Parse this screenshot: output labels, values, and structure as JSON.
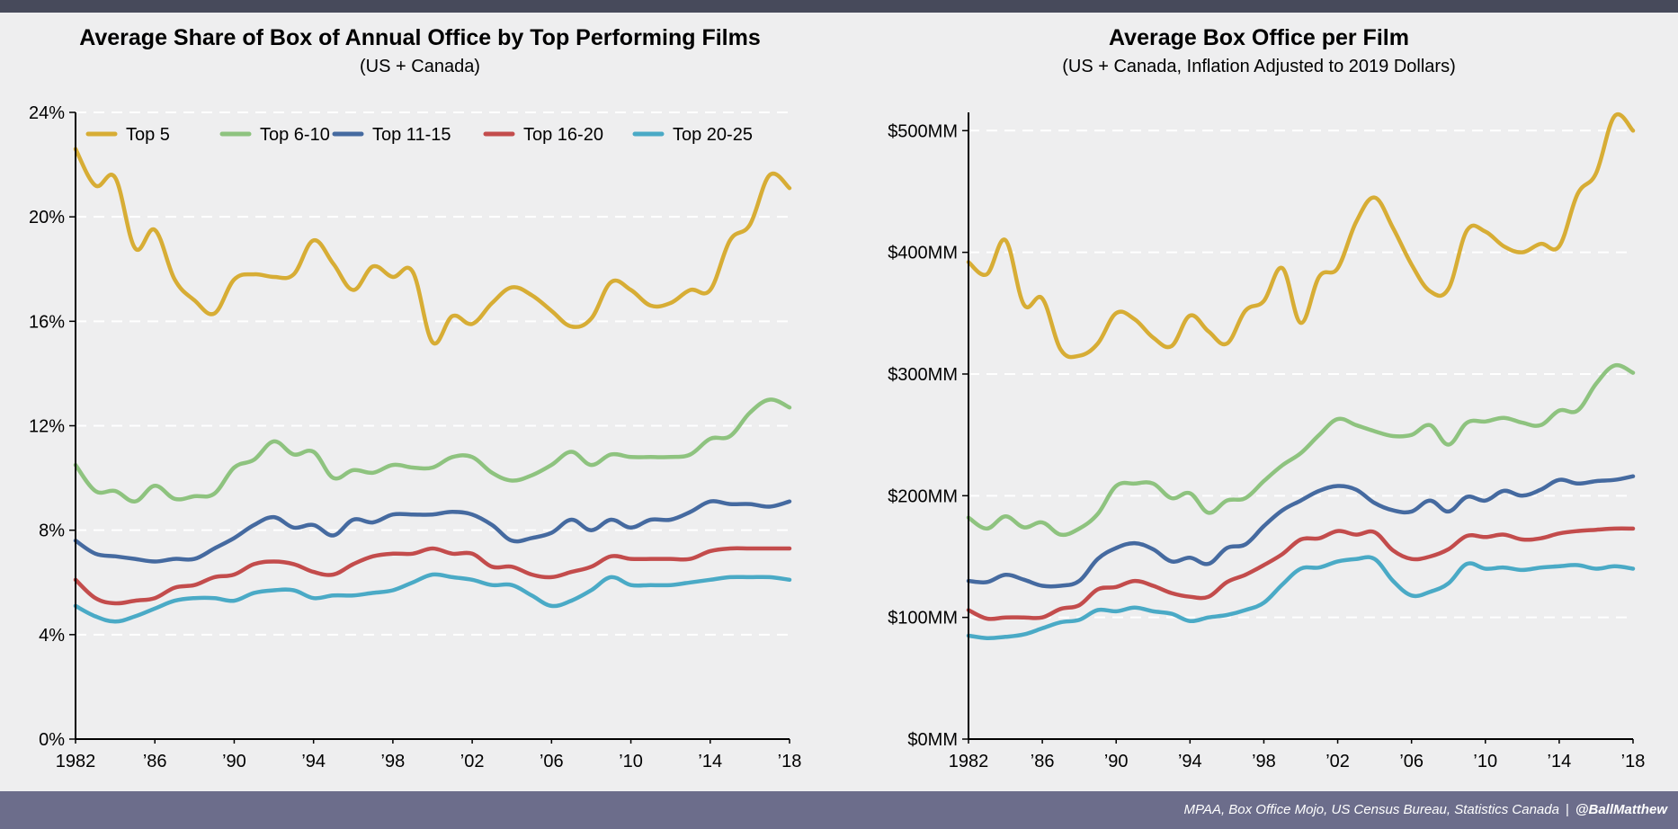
{
  "chart_data": [
    {
      "type": "line",
      "title": "Average Share of Box of Annual Office by Top Performing Films",
      "subtitle": "(US + Canada)",
      "xlabel": "",
      "ylabel": "",
      "x": [
        1982,
        1983,
        1984,
        1985,
        1986,
        1987,
        1988,
        1989,
        1990,
        1991,
        1992,
        1993,
        1994,
        1995,
        1996,
        1997,
        1998,
        1999,
        2000,
        2001,
        2002,
        2003,
        2004,
        2005,
        2006,
        2007,
        2008,
        2009,
        2010,
        2011,
        2012,
        2013,
        2014,
        2015,
        2016,
        2017,
        2018
      ],
      "xlim": [
        1982,
        2018
      ],
      "x_ticks": [
        1982,
        1986,
        1990,
        1994,
        1998,
        2002,
        2006,
        2010,
        2014,
        2018
      ],
      "x_tick_labels": [
        "1982",
        "’86",
        "’90",
        "’94",
        "’98",
        "’02",
        "’06",
        "’10",
        "’14",
        "’18"
      ],
      "ylim": [
        0,
        24
      ],
      "y_ticks": [
        0,
        4,
        8,
        12,
        16,
        20,
        24
      ],
      "y_tick_labels": [
        "0%",
        "4%",
        "8%",
        "12%",
        "16%",
        "20%",
        "24%"
      ],
      "grid": "horizontal-dashed",
      "legend": "top",
      "series": [
        {
          "name": "Top 5",
          "color": "#d7ad35",
          "values": [
            22.6,
            21.2,
            21.5,
            18.8,
            19.5,
            17.6,
            16.8,
            16.3,
            17.6,
            17.8,
            17.7,
            17.8,
            19.1,
            18.2,
            17.2,
            18.1,
            17.7,
            17.9,
            15.2,
            16.2,
            15.9,
            16.7,
            17.3,
            17.0,
            16.4,
            15.8,
            16.1,
            17.5,
            17.2,
            16.6,
            16.7,
            17.2,
            17.2,
            19.1,
            19.7,
            21.6,
            21.1
          ]
        },
        {
          "name": "Top 6-10",
          "color": "#8ec37f",
          "values": [
            10.5,
            9.5,
            9.5,
            9.1,
            9.7,
            9.2,
            9.3,
            9.4,
            10.4,
            10.7,
            11.4,
            10.9,
            11.0,
            10.0,
            10.3,
            10.2,
            10.5,
            10.4,
            10.4,
            10.8,
            10.8,
            10.2,
            9.9,
            10.1,
            10.5,
            11.0,
            10.5,
            10.9,
            10.8,
            10.8,
            10.8,
            10.9,
            11.5,
            11.6,
            12.5,
            13.0,
            12.7
          ]
        },
        {
          "name": "Top 11-15",
          "color": "#456aa0",
          "values": [
            7.6,
            7.1,
            7.0,
            6.9,
            6.8,
            6.9,
            6.9,
            7.3,
            7.7,
            8.2,
            8.5,
            8.1,
            8.2,
            7.8,
            8.4,
            8.3,
            8.6,
            8.6,
            8.6,
            8.7,
            8.6,
            8.2,
            7.6,
            7.7,
            7.9,
            8.4,
            8.0,
            8.4,
            8.1,
            8.4,
            8.4,
            8.7,
            9.1,
            9.0,
            9.0,
            8.9,
            9.1
          ]
        },
        {
          "name": "Top 16-20",
          "color": "#c34c4c",
          "values": [
            6.1,
            5.4,
            5.2,
            5.3,
            5.4,
            5.8,
            5.9,
            6.2,
            6.3,
            6.7,
            6.8,
            6.7,
            6.4,
            6.3,
            6.7,
            7.0,
            7.1,
            7.1,
            7.3,
            7.1,
            7.1,
            6.6,
            6.6,
            6.3,
            6.2,
            6.4,
            6.6,
            7.0,
            6.9,
            6.9,
            6.9,
            6.9,
            7.2,
            7.3,
            7.3,
            7.3,
            7.3
          ]
        },
        {
          "name": "Top 20-25",
          "color": "#4aaac6",
          "values": [
            5.1,
            4.7,
            4.5,
            4.7,
            5.0,
            5.3,
            5.4,
            5.4,
            5.3,
            5.6,
            5.7,
            5.7,
            5.4,
            5.5,
            5.5,
            5.6,
            5.7,
            6.0,
            6.3,
            6.2,
            6.1,
            5.9,
            5.9,
            5.5,
            5.1,
            5.3,
            5.7,
            6.2,
            5.9,
            5.9,
            5.9,
            6.0,
            6.1,
            6.2,
            6.2,
            6.2,
            6.1
          ]
        }
      ]
    },
    {
      "type": "line",
      "title": "Average Box Office per Film",
      "subtitle": "(US + Canada, Inflation Adjusted to 2019 Dollars)",
      "xlabel": "",
      "ylabel": "",
      "x": [
        1982,
        1983,
        1984,
        1985,
        1986,
        1987,
        1988,
        1989,
        1990,
        1991,
        1992,
        1993,
        1994,
        1995,
        1996,
        1997,
        1998,
        1999,
        2000,
        2001,
        2002,
        2003,
        2004,
        2005,
        2006,
        2007,
        2008,
        2009,
        2010,
        2011,
        2012,
        2013,
        2014,
        2015,
        2016,
        2017,
        2018
      ],
      "xlim": [
        1982,
        2018
      ],
      "x_ticks": [
        1982,
        1986,
        1990,
        1994,
        1998,
        2002,
        2006,
        2010,
        2014,
        2018
      ],
      "x_tick_labels": [
        "1982",
        "’86",
        "’90",
        "’94",
        "’98",
        "’02",
        "’06",
        "’10",
        "’14",
        "’18"
      ],
      "ylim": [
        0,
        515
      ],
      "y_ticks": [
        0,
        100,
        200,
        300,
        400,
        500
      ],
      "y_tick_labels": [
        "$0MM",
        "$100MM",
        "$200MM",
        "$300MM",
        "$400MM",
        "$500MM"
      ],
      "grid": "horizontal-dashed",
      "legend": "none",
      "series": [
        {
          "name": "Top 5",
          "color": "#d7ad35",
          "values": [
            392,
            382,
            410,
            357,
            362,
            320,
            315,
            325,
            350,
            345,
            330,
            323,
            348,
            335,
            325,
            352,
            360,
            387,
            342,
            380,
            387,
            425,
            445,
            420,
            390,
            368,
            370,
            418,
            417,
            405,
            400,
            407,
            405,
            448,
            465,
            512,
            500
          ]
        },
        {
          "name": "Top 6-10",
          "color": "#8ec37f",
          "values": [
            182,
            173,
            183,
            174,
            178,
            168,
            173,
            185,
            208,
            210,
            210,
            198,
            202,
            186,
            196,
            198,
            212,
            225,
            235,
            250,
            263,
            258,
            253,
            249,
            250,
            258,
            242,
            260,
            261,
            264,
            260,
            258,
            270,
            270,
            292,
            307,
            301
          ]
        },
        {
          "name": "Top 11-15",
          "color": "#456aa0",
          "values": [
            130,
            129,
            135,
            131,
            126,
            126,
            130,
            148,
            157,
            161,
            156,
            146,
            149,
            144,
            157,
            160,
            175,
            188,
            196,
            204,
            208,
            205,
            194,
            188,
            187,
            196,
            187,
            199,
            196,
            204,
            200,
            205,
            213,
            210,
            212,
            213,
            216
          ]
        },
        {
          "name": "Top 16-20",
          "color": "#c34c4c",
          "values": [
            106,
            99,
            100,
            100,
            100,
            107,
            110,
            123,
            125,
            130,
            126,
            120,
            117,
            117,
            129,
            135,
            143,
            152,
            164,
            165,
            171,
            168,
            170,
            155,
            148,
            150,
            156,
            167,
            166,
            168,
            164,
            165,
            169,
            171,
            172,
            173,
            173
          ]
        },
        {
          "name": "Top 20-25",
          "color": "#4aaac6",
          "values": [
            85,
            83,
            84,
            86,
            91,
            96,
            98,
            106,
            105,
            108,
            105,
            103,
            97,
            100,
            102,
            106,
            112,
            127,
            140,
            141,
            146,
            148,
            148,
            130,
            118,
            121,
            128,
            144,
            140,
            141,
            139,
            141,
            142,
            143,
            140,
            142,
            140
          ]
        }
      ]
    }
  ],
  "footer": {
    "sources": "MPAA, Box Office Mojo, US Census Bureau, Statistics Canada",
    "separator": "|",
    "handle": "@BallMatthew"
  }
}
